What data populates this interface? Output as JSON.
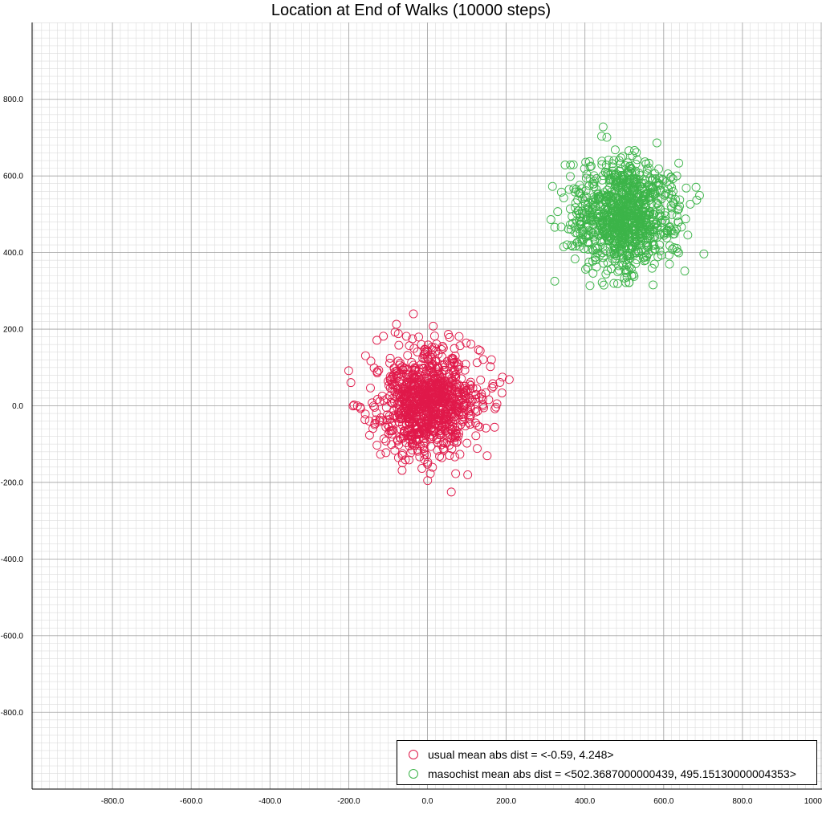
{
  "chart_data": {
    "type": "scatter",
    "title": "Location at End of Walks (10000 steps)",
    "xlabel": "",
    "ylabel": "",
    "xlim": [
      -1000,
      1000
    ],
    "ylim": [
      -1000,
      1000
    ],
    "xticks": [
      "-800.0",
      "-600.0",
      "-400.0",
      "-200.0",
      "0.0",
      "200.0",
      "400.0",
      "600.0",
      "800.0",
      "1000"
    ],
    "yticks": [
      "800.0",
      "600.0",
      "400.0",
      "200.0",
      "0.0",
      "-200.0",
      "-400.0",
      "-600.0",
      "-800.0"
    ],
    "grid": true,
    "legend_position": "bottom-right",
    "series": [
      {
        "name": "usual mean abs dist = <-0.59, 4.248>",
        "color": "#e0194a",
        "marker": "hollow-circle",
        "center": [
          -0.59,
          4.248
        ],
        "spread": [
          65,
          70
        ],
        "count": 1000,
        "x_extent": [
          -200,
          230
        ],
        "y_extent": [
          -225,
          240
        ]
      },
      {
        "name": "masochist mean abs dist = <502.3687000000439, 495.15130000004353>",
        "color": "#3cb449",
        "marker": "hollow-circle",
        "center": [
          502.3687000000439,
          495.15130000004353
        ],
        "spread": [
          65,
          70
        ],
        "count": 1000,
        "x_extent": [
          285,
          770
        ],
        "y_extent": [
          258,
          728
        ]
      }
    ]
  }
}
